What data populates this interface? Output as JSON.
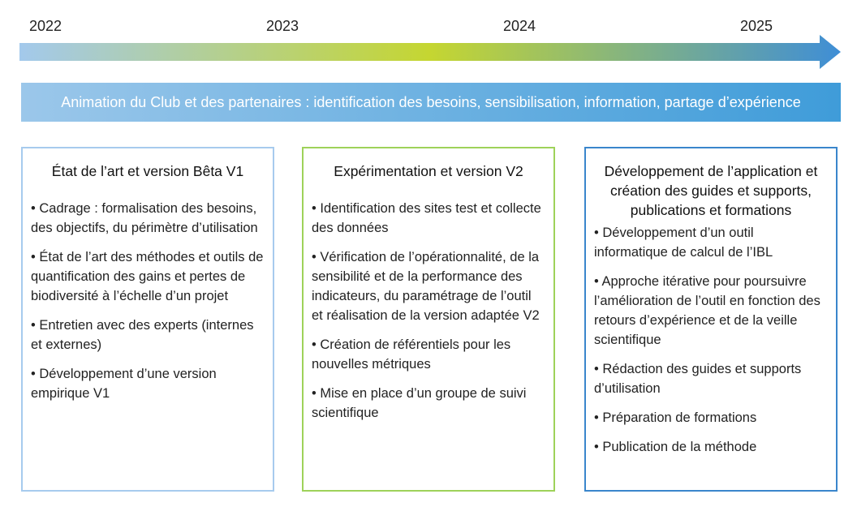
{
  "timeline": {
    "years": [
      "2022",
      "2023",
      "2024",
      "2025"
    ]
  },
  "banner": {
    "text": "Animation du Club et des partenaires : identification des besoins, sensibilisation, information, partage d’expérience"
  },
  "colors": {
    "arrow_start": "#a3c9ec",
    "arrow_mid": "#c5d631",
    "arrow_end": "#3f8ed6",
    "card_1_border": "#a7cbee",
    "card_2_border": "#9ed25a",
    "card_3_border": "#3a86cc"
  },
  "cards": [
    {
      "title": "État de l’art et version Bêta V1",
      "items": [
        "Cadrage : formalisation des besoins, des objectifs, du périmètre d’utilisation",
        "État de l’art des méthodes et outils de quantification des gains et pertes de biodiversité à l’échelle d’un projet",
        "Entretien avec des experts (internes et externes)",
        "Développement d’une version empirique V1"
      ]
    },
    {
      "title": "Expérimentation et version V2",
      "items": [
        "Identification des sites test et collecte des données",
        "Vérification de l’opérationnalité, de la sensibilité et de la performance des indicateurs, du paramétrage de l’outil et réalisation de la version adaptée V2",
        "Création de référentiels pour les nouvelles métriques",
        "Mise en place d’un groupe de suivi scientifique"
      ]
    },
    {
      "title": "Développement de l’application et création des guides et supports, publications et formations",
      "items": [
        "Développement d’un outil informatique de calcul de l’IBL",
        "Approche itérative pour poursuivre l’amélioration de l’outil en fonction des retours d’expérience et de la veille scientifique",
        "Rédaction des guides et supports d’utilisation",
        "Préparation de formations",
        "Publication de la méthode"
      ]
    }
  ]
}
